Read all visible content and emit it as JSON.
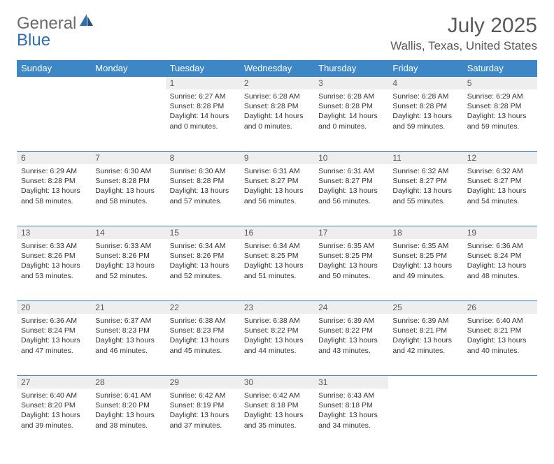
{
  "brand": {
    "general": "General",
    "blue": "Blue"
  },
  "title": "July 2025",
  "location": "Wallis, Texas, United States",
  "colors": {
    "header_bg": "#3d87c7",
    "header_text": "#ffffff",
    "daynum_bg": "#eeeeee",
    "text": "#333333",
    "title_text": "#595959",
    "brand_gray": "#6a6a6a",
    "brand_blue": "#2f6fad",
    "page_bg": "#ffffff"
  },
  "weekdays": [
    "Sunday",
    "Monday",
    "Tuesday",
    "Wednesday",
    "Thursday",
    "Friday",
    "Saturday"
  ],
  "weeks": [
    [
      null,
      null,
      {
        "n": "1",
        "sr": "Sunrise: 6:27 AM",
        "ss": "Sunset: 8:28 PM",
        "dl": "Daylight: 14 hours and 0 minutes."
      },
      {
        "n": "2",
        "sr": "Sunrise: 6:28 AM",
        "ss": "Sunset: 8:28 PM",
        "dl": "Daylight: 14 hours and 0 minutes."
      },
      {
        "n": "3",
        "sr": "Sunrise: 6:28 AM",
        "ss": "Sunset: 8:28 PM",
        "dl": "Daylight: 14 hours and 0 minutes."
      },
      {
        "n": "4",
        "sr": "Sunrise: 6:28 AM",
        "ss": "Sunset: 8:28 PM",
        "dl": "Daylight: 13 hours and 59 minutes."
      },
      {
        "n": "5",
        "sr": "Sunrise: 6:29 AM",
        "ss": "Sunset: 8:28 PM",
        "dl": "Daylight: 13 hours and 59 minutes."
      }
    ],
    [
      {
        "n": "6",
        "sr": "Sunrise: 6:29 AM",
        "ss": "Sunset: 8:28 PM",
        "dl": "Daylight: 13 hours and 58 minutes."
      },
      {
        "n": "7",
        "sr": "Sunrise: 6:30 AM",
        "ss": "Sunset: 8:28 PM",
        "dl": "Daylight: 13 hours and 58 minutes."
      },
      {
        "n": "8",
        "sr": "Sunrise: 6:30 AM",
        "ss": "Sunset: 8:28 PM",
        "dl": "Daylight: 13 hours and 57 minutes."
      },
      {
        "n": "9",
        "sr": "Sunrise: 6:31 AM",
        "ss": "Sunset: 8:27 PM",
        "dl": "Daylight: 13 hours and 56 minutes."
      },
      {
        "n": "10",
        "sr": "Sunrise: 6:31 AM",
        "ss": "Sunset: 8:27 PM",
        "dl": "Daylight: 13 hours and 56 minutes."
      },
      {
        "n": "11",
        "sr": "Sunrise: 6:32 AM",
        "ss": "Sunset: 8:27 PM",
        "dl": "Daylight: 13 hours and 55 minutes."
      },
      {
        "n": "12",
        "sr": "Sunrise: 6:32 AM",
        "ss": "Sunset: 8:27 PM",
        "dl": "Daylight: 13 hours and 54 minutes."
      }
    ],
    [
      {
        "n": "13",
        "sr": "Sunrise: 6:33 AM",
        "ss": "Sunset: 8:26 PM",
        "dl": "Daylight: 13 hours and 53 minutes."
      },
      {
        "n": "14",
        "sr": "Sunrise: 6:33 AM",
        "ss": "Sunset: 8:26 PM",
        "dl": "Daylight: 13 hours and 52 minutes."
      },
      {
        "n": "15",
        "sr": "Sunrise: 6:34 AM",
        "ss": "Sunset: 8:26 PM",
        "dl": "Daylight: 13 hours and 52 minutes."
      },
      {
        "n": "16",
        "sr": "Sunrise: 6:34 AM",
        "ss": "Sunset: 8:25 PM",
        "dl": "Daylight: 13 hours and 51 minutes."
      },
      {
        "n": "17",
        "sr": "Sunrise: 6:35 AM",
        "ss": "Sunset: 8:25 PM",
        "dl": "Daylight: 13 hours and 50 minutes."
      },
      {
        "n": "18",
        "sr": "Sunrise: 6:35 AM",
        "ss": "Sunset: 8:25 PM",
        "dl": "Daylight: 13 hours and 49 minutes."
      },
      {
        "n": "19",
        "sr": "Sunrise: 6:36 AM",
        "ss": "Sunset: 8:24 PM",
        "dl": "Daylight: 13 hours and 48 minutes."
      }
    ],
    [
      {
        "n": "20",
        "sr": "Sunrise: 6:36 AM",
        "ss": "Sunset: 8:24 PM",
        "dl": "Daylight: 13 hours and 47 minutes."
      },
      {
        "n": "21",
        "sr": "Sunrise: 6:37 AM",
        "ss": "Sunset: 8:23 PM",
        "dl": "Daylight: 13 hours and 46 minutes."
      },
      {
        "n": "22",
        "sr": "Sunrise: 6:38 AM",
        "ss": "Sunset: 8:23 PM",
        "dl": "Daylight: 13 hours and 45 minutes."
      },
      {
        "n": "23",
        "sr": "Sunrise: 6:38 AM",
        "ss": "Sunset: 8:22 PM",
        "dl": "Daylight: 13 hours and 44 minutes."
      },
      {
        "n": "24",
        "sr": "Sunrise: 6:39 AM",
        "ss": "Sunset: 8:22 PM",
        "dl": "Daylight: 13 hours and 43 minutes."
      },
      {
        "n": "25",
        "sr": "Sunrise: 6:39 AM",
        "ss": "Sunset: 8:21 PM",
        "dl": "Daylight: 13 hours and 42 minutes."
      },
      {
        "n": "26",
        "sr": "Sunrise: 6:40 AM",
        "ss": "Sunset: 8:21 PM",
        "dl": "Daylight: 13 hours and 40 minutes."
      }
    ],
    [
      {
        "n": "27",
        "sr": "Sunrise: 6:40 AM",
        "ss": "Sunset: 8:20 PM",
        "dl": "Daylight: 13 hours and 39 minutes."
      },
      {
        "n": "28",
        "sr": "Sunrise: 6:41 AM",
        "ss": "Sunset: 8:20 PM",
        "dl": "Daylight: 13 hours and 38 minutes."
      },
      {
        "n": "29",
        "sr": "Sunrise: 6:42 AM",
        "ss": "Sunset: 8:19 PM",
        "dl": "Daylight: 13 hours and 37 minutes."
      },
      {
        "n": "30",
        "sr": "Sunrise: 6:42 AM",
        "ss": "Sunset: 8:18 PM",
        "dl": "Daylight: 13 hours and 35 minutes."
      },
      {
        "n": "31",
        "sr": "Sunrise: 6:43 AM",
        "ss": "Sunset: 8:18 PM",
        "dl": "Daylight: 13 hours and 34 minutes."
      },
      null,
      null
    ]
  ]
}
